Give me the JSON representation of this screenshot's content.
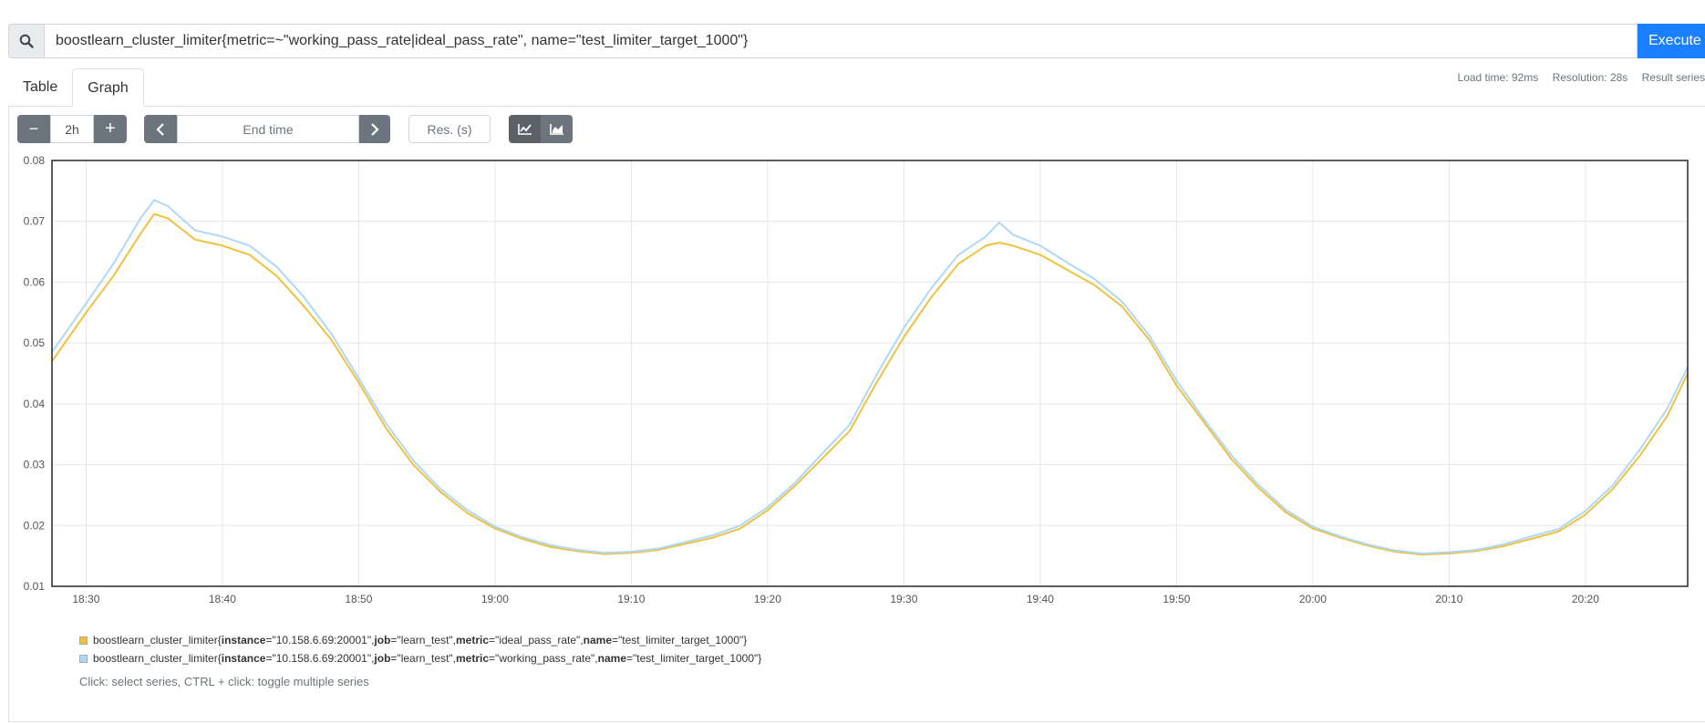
{
  "query": {
    "text": "boostlearn_cluster_limiter{metric=~\"working_pass_rate|ideal_pass_rate\", name=\"test_limiter_target_1000\"}",
    "execute_label": "Execute"
  },
  "tabs": [
    {
      "label": "Table"
    },
    {
      "label": "Graph"
    }
  ],
  "stats": {
    "load_time": "Load time: 92ms",
    "resolution": "Resolution: 28s",
    "result_series": "Result series"
  },
  "controls": {
    "minus": "−",
    "range": "2h",
    "plus": "+",
    "end_time_placeholder": "End time",
    "res_placeholder": "Res. (s)"
  },
  "legend": [
    {
      "metric_name": "boostlearn_cluster_limiter",
      "labels": [
        {
          "key": "instance",
          "value": "10.158.6.69:20001"
        },
        {
          "key": "job",
          "value": "learn_test"
        },
        {
          "key": "metric",
          "value": "ideal_pass_rate"
        },
        {
          "key": "name",
          "value": "test_limiter_target_1000"
        }
      ]
    },
    {
      "metric_name": "boostlearn_cluster_limiter",
      "labels": [
        {
          "key": "instance",
          "value": "10.158.6.69:20001"
        },
        {
          "key": "job",
          "value": "learn_test"
        },
        {
          "key": "metric",
          "value": "working_pass_rate"
        },
        {
          "key": "name",
          "value": "test_limiter_target_1000"
        }
      ]
    }
  ],
  "hint": "Click: select series, CTRL + click: toggle multiple series",
  "chart_data": {
    "type": "line",
    "x_ticks": [
      "18:30",
      "18:40",
      "18:50",
      "19:00",
      "19:10",
      "19:20",
      "19:30",
      "19:40",
      "19:50",
      "20:00",
      "20:10",
      "20:20"
    ],
    "x_range": [
      "18:27:30",
      "20:27:30"
    ],
    "y_ticks": [
      "0.08",
      "0.07",
      "0.06",
      "0.05",
      "0.04",
      "0.03",
      "0.02",
      "0.01"
    ],
    "ylim": [
      0.01,
      0.08
    ],
    "grid": true,
    "series": [
      {
        "color": "#edc240",
        "x": [
          "18:27:30",
          "18:30",
          "18:32",
          "18:34",
          "18:35",
          "18:36",
          "18:38",
          "18:40",
          "18:42",
          "18:44",
          "18:46",
          "18:48",
          "18:50",
          "18:52",
          "18:54",
          "18:56",
          "18:58",
          "19:00",
          "19:02",
          "19:04",
          "19:06",
          "19:08",
          "19:10",
          "19:12",
          "19:14",
          "19:16",
          "19:18",
          "19:20",
          "19:22",
          "19:24",
          "19:26",
          "19:28",
          "19:30",
          "19:32",
          "19:34",
          "19:36",
          "19:37",
          "19:38",
          "19:40",
          "19:42",
          "19:44",
          "19:46",
          "19:48",
          "19:50",
          "19:52",
          "19:54",
          "19:56",
          "19:58",
          "20:00",
          "20:02",
          "20:04",
          "20:06",
          "20:08",
          "20:10",
          "20:12",
          "20:14",
          "20:16",
          "20:18",
          "20:20",
          "20:22",
          "20:24",
          "20:26",
          "20:27:30"
        ],
        "values": [
          0.047,
          0.055,
          0.061,
          0.068,
          0.0712,
          0.0705,
          0.067,
          0.066,
          0.0645,
          0.061,
          0.056,
          0.0505,
          0.0435,
          0.036,
          0.03,
          0.0255,
          0.022,
          0.0195,
          0.0178,
          0.0165,
          0.0158,
          0.0153,
          0.0155,
          0.016,
          0.017,
          0.018,
          0.0195,
          0.0225,
          0.0265,
          0.031,
          0.0355,
          0.0435,
          0.051,
          0.0575,
          0.063,
          0.066,
          0.0665,
          0.066,
          0.0645,
          0.062,
          0.0595,
          0.056,
          0.0505,
          0.043,
          0.037,
          0.031,
          0.0262,
          0.0222,
          0.0195,
          0.018,
          0.0167,
          0.0157,
          0.0152,
          0.0154,
          0.0158,
          0.0166,
          0.0178,
          0.019,
          0.0218,
          0.026,
          0.0315,
          0.038,
          0.045
        ]
      },
      {
        "color": "#afd8f8",
        "x": [
          "18:27:30",
          "18:30",
          "18:32",
          "18:34",
          "18:35",
          "18:36",
          "18:38",
          "18:40",
          "18:42",
          "18:44",
          "18:46",
          "18:48",
          "18:50",
          "18:52",
          "18:54",
          "18:56",
          "18:58",
          "19:00",
          "19:02",
          "19:04",
          "19:06",
          "19:08",
          "19:10",
          "19:12",
          "19:14",
          "19:16",
          "19:18",
          "19:20",
          "19:22",
          "19:24",
          "19:26",
          "19:28",
          "19:30",
          "19:32",
          "19:34",
          "19:36",
          "19:37",
          "19:38",
          "19:40",
          "19:42",
          "19:44",
          "19:46",
          "19:48",
          "19:50",
          "19:52",
          "19:54",
          "19:56",
          "19:58",
          "20:00",
          "20:02",
          "20:04",
          "20:06",
          "20:08",
          "20:10",
          "20:12",
          "20:14",
          "20:16",
          "20:18",
          "20:20",
          "20:22",
          "20:24",
          "20:26",
          "20:27:30"
        ],
        "values": [
          0.0485,
          0.0565,
          0.063,
          0.0705,
          0.0735,
          0.0725,
          0.0685,
          0.0675,
          0.066,
          0.0625,
          0.0575,
          0.0515,
          0.0442,
          0.0368,
          0.0307,
          0.026,
          0.0225,
          0.0198,
          0.0181,
          0.0168,
          0.016,
          0.0155,
          0.0157,
          0.0162,
          0.0173,
          0.0184,
          0.02,
          0.023,
          0.027,
          0.0318,
          0.0365,
          0.0448,
          0.0525,
          0.059,
          0.0645,
          0.0675,
          0.0698,
          0.0678,
          0.066,
          0.0632,
          0.0605,
          0.0568,
          0.0512,
          0.0438,
          0.0375,
          0.0316,
          0.0267,
          0.0226,
          0.0198,
          0.0182,
          0.0169,
          0.0159,
          0.0154,
          0.0156,
          0.016,
          0.0169,
          0.0182,
          0.0194,
          0.0224,
          0.0266,
          0.0325,
          0.0392,
          0.046
        ]
      }
    ]
  }
}
